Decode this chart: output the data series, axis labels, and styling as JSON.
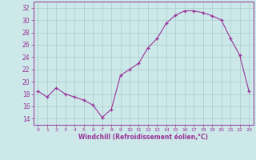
{
  "x": [
    0,
    1,
    2,
    3,
    4,
    5,
    6,
    7,
    8,
    9,
    10,
    11,
    12,
    13,
    14,
    15,
    16,
    17,
    18,
    19,
    20,
    21,
    22,
    23
  ],
  "y": [
    18.5,
    17.5,
    19.0,
    18.0,
    17.5,
    17.0,
    16.2,
    14.2,
    15.5,
    21.0,
    22.0,
    23.0,
    25.5,
    27.0,
    29.5,
    30.8,
    31.5,
    31.5,
    31.2,
    30.7,
    30.0,
    27.0,
    24.3,
    18.5
  ],
  "line_color": "#993399",
  "marker": "+",
  "marker_color": "#993399",
  "bg_color": "#cce8e8",
  "grid_color": "#aacccc",
  "xlabel": "Windchill (Refroidissement éolien,°C)",
  "xlim": [
    -0.5,
    23.5
  ],
  "ylim": [
    13,
    33
  ],
  "yticks": [
    14,
    16,
    18,
    20,
    22,
    24,
    26,
    28,
    30,
    32
  ],
  "xticks": [
    0,
    1,
    2,
    3,
    4,
    5,
    6,
    7,
    8,
    9,
    10,
    11,
    12,
    13,
    14,
    15,
    16,
    17,
    18,
    19,
    20,
    21,
    22,
    23
  ],
  "tick_color": "#993399",
  "label_color": "#993399",
  "axis_color": "#993399"
}
